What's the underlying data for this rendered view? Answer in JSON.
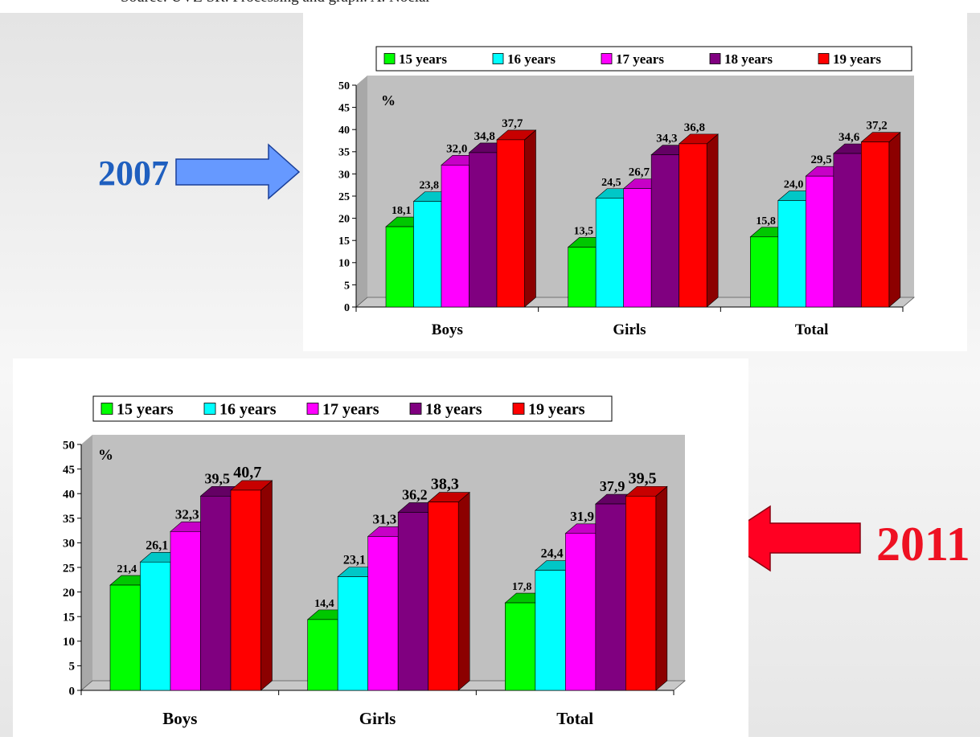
{
  "source_text": "Source: ÚVZ SR. Processing and graph: A. Nociar",
  "year_labels": {
    "top": "2007",
    "bottom": "2011"
  },
  "colors": {
    "15 years": "#00ff00",
    "16 years": "#00ffff",
    "17 years": "#ff00ff",
    "18 years": "#800080",
    "19 years": "#ff0000",
    "arrow_2007": "#6699ff",
    "arrow_2011": "#ff0022"
  },
  "chart_data": [
    {
      "type": "bar",
      "title": "",
      "ylabel": "%",
      "xlabel": "",
      "ylim": [
        0,
        50
      ],
      "yticks": [
        0,
        5,
        10,
        15,
        20,
        25,
        30,
        35,
        40,
        45,
        50
      ],
      "legend_position": "top",
      "categories": [
        "Boys",
        "Girls",
        "Total"
      ],
      "series": [
        {
          "name": "15 years",
          "values": [
            18.1,
            13.5,
            15.8
          ],
          "labels": [
            "18,1",
            "13,5",
            "15,8"
          ]
        },
        {
          "name": "16 years",
          "values": [
            23.8,
            24.5,
            24.0
          ],
          "labels": [
            "23,8",
            "24,5",
            "24,0"
          ]
        },
        {
          "name": "17 years",
          "values": [
            32.0,
            26.7,
            29.5
          ],
          "labels": [
            "32,0",
            "26,7",
            "29,5"
          ]
        },
        {
          "name": "18 years",
          "values": [
            34.8,
            34.3,
            34.6
          ],
          "labels": [
            "34,8",
            "34,3",
            "34,6"
          ]
        },
        {
          "name": "19 years",
          "values": [
            37.7,
            36.8,
            37.2
          ],
          "labels": [
            "37,7",
            "36,8",
            "37,2"
          ]
        }
      ]
    },
    {
      "type": "bar",
      "title": "",
      "ylabel": "%",
      "xlabel": "",
      "ylim": [
        0,
        50
      ],
      "yticks": [
        0,
        5,
        10,
        15,
        20,
        25,
        30,
        35,
        40,
        45,
        50
      ],
      "legend_position": "top",
      "categories": [
        "Boys",
        "Girls",
        "Total"
      ],
      "series": [
        {
          "name": "15 years",
          "values": [
            21.4,
            14.4,
            17.8
          ],
          "labels": [
            "21,4",
            "14,4",
            "17,8"
          ]
        },
        {
          "name": "16 years",
          "values": [
            26.1,
            23.1,
            24.4
          ],
          "labels": [
            "26,1",
            "23,1",
            "24,4"
          ]
        },
        {
          "name": "17 years",
          "values": [
            32.3,
            31.3,
            31.9
          ],
          "labels": [
            "32,3",
            "31,3",
            "31,9"
          ]
        },
        {
          "name": "18 years",
          "values": [
            39.5,
            36.2,
            37.9
          ],
          "labels": [
            "39,5",
            "36,2",
            "37,9"
          ]
        },
        {
          "name": "19 years",
          "values": [
            40.7,
            38.3,
            39.5
          ],
          "labels": [
            "40,7",
            "38,3",
            "39,5"
          ]
        }
      ]
    }
  ]
}
